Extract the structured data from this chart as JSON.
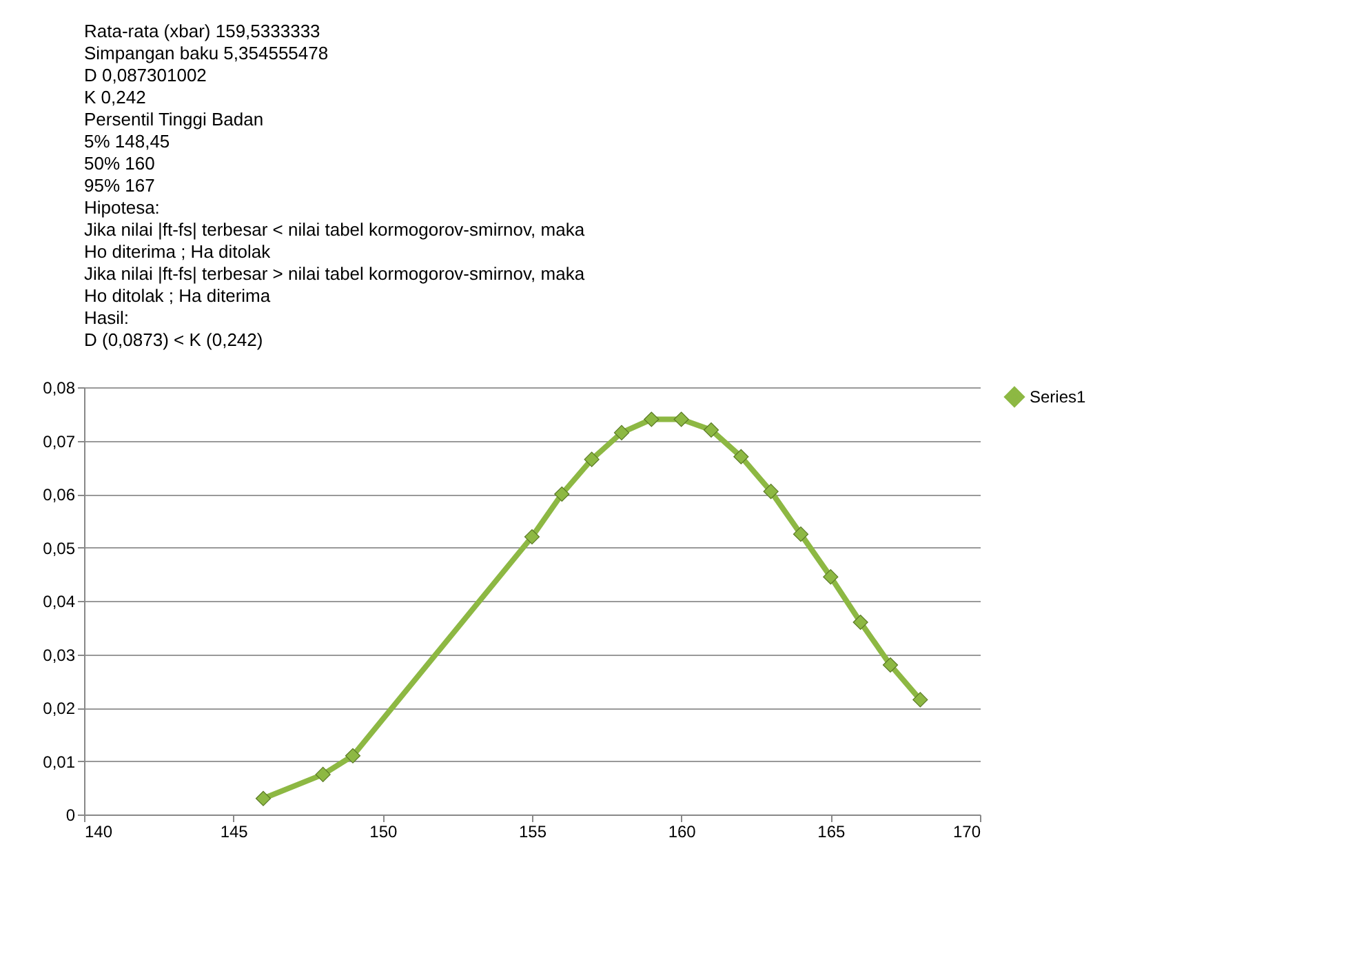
{
  "chart_data": {
    "type": "line",
    "annotations": [
      "Rata-rata (xbar)   159,5333333",
      "Simpangan baku   5,354555478",
      "D   0,087301002",
      "K   0,242",
      "Persentil   Tinggi Badan",
      "5%   148,45",
      "50%   160",
      "95%   167",
      "Hipotesa:",
      "Jika nilai |ft-fs| terbesar < nilai tabel kormogorov-smirnov, maka",
      "Ho diterima ; Ha ditolak",
      "Jika nilai |ft-fs| terbesar > nilai tabel kormogorov-smirnov, maka",
      "Ho ditolak ; Ha diterima",
      "Hasil:",
      "D (0,0873) < K (0,242)"
    ],
    "x": [
      146,
      148,
      149,
      155,
      156,
      157,
      158,
      159,
      160,
      161,
      162,
      163,
      164,
      165,
      166,
      167,
      168
    ],
    "series": [
      {
        "name": "Series1",
        "color": "#8db843",
        "values": [
          0.003,
          0.0075,
          0.011,
          0.052,
          0.06,
          0.0665,
          0.0715,
          0.074,
          0.074,
          0.072,
          0.067,
          0.0605,
          0.0525,
          0.0445,
          0.036,
          0.028,
          0.0215
        ]
      }
    ],
    "xlim": [
      140,
      170
    ],
    "xticks": [
      140,
      145,
      150,
      155,
      160,
      165,
      170
    ],
    "ylim": [
      0,
      0.08
    ],
    "yticks": [
      0,
      {
        "value": 0.01,
        "label": "0,01"
      },
      {
        "value": 0.02,
        "label": "0,02"
      },
      {
        "value": 0.03,
        "label": "0,03"
      },
      {
        "value": 0.04,
        "label": "0,04"
      },
      {
        "value": 0.05,
        "label": "0,05"
      },
      {
        "value": 0.06,
        "label": "0,06"
      },
      {
        "value": 0.07,
        "label": "0,07"
      },
      {
        "value": 0.08,
        "label": "0,08"
      }
    ],
    "grid": "y",
    "legend": "right",
    "marker": "diamond",
    "line_style": "solid"
  }
}
